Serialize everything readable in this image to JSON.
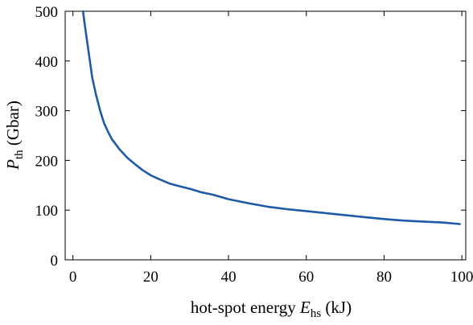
{
  "chart_data": {
    "type": "line",
    "xlabel": {
      "pre": "hot-spot energy ",
      "var": "E",
      "sub": "hs",
      "post": " (kJ)"
    },
    "ylabel": {
      "var": "P",
      "sub": "th",
      "post": " (Gbar)"
    },
    "xlim": [
      -2,
      101
    ],
    "ylim": [
      0,
      500
    ],
    "xticks": [
      0,
      20,
      40,
      60,
      80,
      100
    ],
    "yticks": [
      0,
      100,
      200,
      300,
      400,
      500
    ],
    "grid": false,
    "legend": "none",
    "series": [
      {
        "color": "#1f5aa6",
        "x": [
          2.6,
          3,
          4,
          5,
          6,
          7,
          8,
          9,
          10,
          12,
          14,
          16,
          18,
          20,
          22,
          25,
          28,
          30,
          33,
          36,
          40,
          45,
          50,
          55,
          60,
          65,
          70,
          75,
          80,
          85,
          90,
          95,
          99.5
        ],
        "y": [
          500,
          475,
          420,
          365,
          330,
          300,
          275,
          258,
          243,
          222,
          205,
          192,
          180,
          170,
          163,
          153,
          147,
          143,
          136,
          131,
          122,
          114,
          107,
          102,
          98,
          94,
          90,
          86,
          82,
          79,
          77,
          75,
          72
        ]
      }
    ]
  }
}
